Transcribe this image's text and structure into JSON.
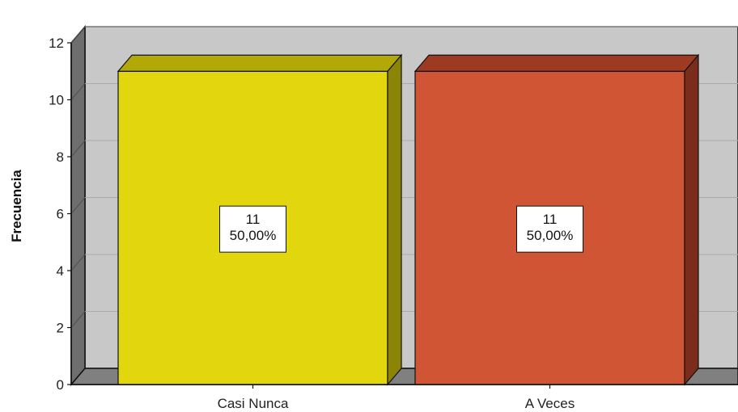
{
  "chart_data": {
    "type": "bar",
    "categories": [
      "Casi Nunca",
      "A Veces"
    ],
    "values": [
      11,
      11
    ],
    "percent_labels": [
      "50,00%",
      "50,00%"
    ],
    "title": "",
    "xlabel": "",
    "ylabel": "Frecuencia",
    "ylim": [
      0,
      12
    ],
    "yticks": [
      "0",
      "2",
      "4",
      "6",
      "8",
      "10",
      "12"
    ],
    "grid": true,
    "three_d": true,
    "colors": {
      "bars": [
        "#e2d60e",
        "#d05535"
      ],
      "bar_tops": [
        "#b2a808",
        "#9c3a22"
      ],
      "bar_sides": [
        "#8c8404",
        "#7c2c1a"
      ],
      "wall": "#c8c8c8",
      "floor": "#808080",
      "side_wall": "#6e6e6e",
      "gridline": "#aaaaaa"
    }
  }
}
